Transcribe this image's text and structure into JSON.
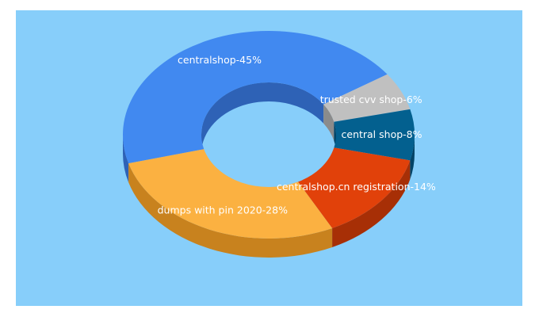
{
  "colors": {
    "background": "#87cefa",
    "page": "#ffffff",
    "label_text": "#ffffff"
  },
  "chart_data": {
    "type": "pie",
    "style": "3d-donut",
    "title": "",
    "slices": [
      {
        "label": "centralshop-45%",
        "name": "centralshop",
        "value": 45,
        "color": "#4189f0",
        "side_color": "#2e62b6"
      },
      {
        "label": "trusted cvv shop-6%",
        "name": "trusted cvv shop",
        "value": 6,
        "color": "#c0c0c0",
        "side_color": "#8b8b8b"
      },
      {
        "label": "central shop-8%",
        "name": "central shop",
        "value": 8,
        "color": "#03608f",
        "side_color": "#024467"
      },
      {
        "label": "centralshop.cn registration-14%",
        "name": "centralshop.cn registration",
        "value": 14,
        "color": "#e1410a",
        "side_color": "#a72f06"
      },
      {
        "label": "dumps with pin 2020-28%",
        "name": "dumps with pin 2020",
        "value": 28,
        "color": "#fbb141",
        "side_color": "#c8821e"
      }
    ]
  }
}
